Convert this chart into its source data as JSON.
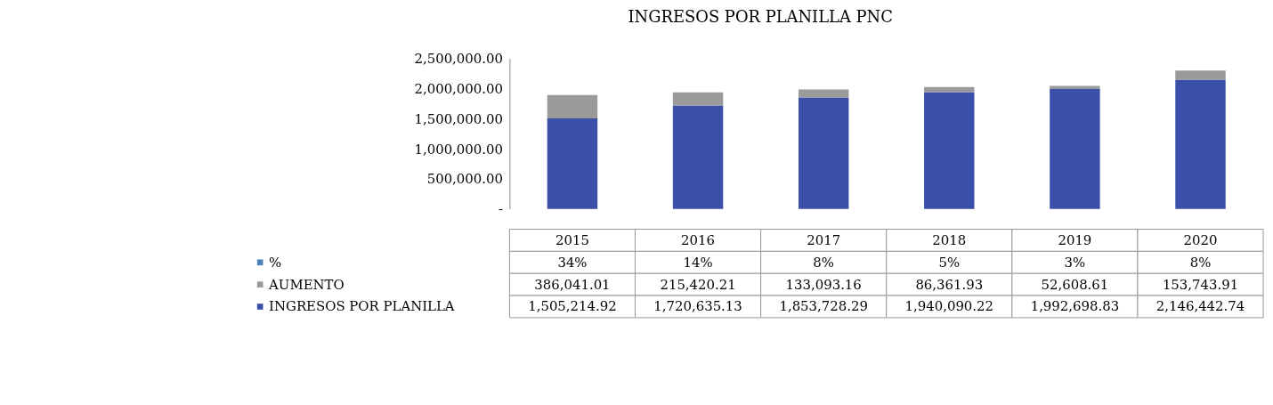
{
  "chart_data": {
    "type": "bar",
    "title": "INGRESOS POR PLANILLA PNC",
    "stacked": true,
    "legend": "bottom",
    "grid": false,
    "categories": [
      "2015",
      "2016",
      "2017",
      "2018",
      "2019",
      "2020"
    ],
    "ylim": [
      0,
      2500000
    ],
    "yticks": [
      {
        "value": 0,
        "label": "-"
      },
      {
        "value": 500000,
        "label": "500,000.00"
      },
      {
        "value": 1000000,
        "label": "1,000,000.00"
      },
      {
        "value": 1500000,
        "label": "1,500,000.00"
      },
      {
        "value": 2000000,
        "label": "2,000,000.00"
      },
      {
        "value": 2500000,
        "label": "2,500,000.00"
      }
    ],
    "series": [
      {
        "name": "INGRESOS POR PLANILLA",
        "color": "#3a4fa8",
        "values": [
          1505214.92,
          1720635.13,
          1853728.29,
          1940090.22,
          1992698.83,
          2146442.74
        ],
        "value_labels": [
          "1,505,214.92",
          "1,720,635.13",
          "1,853,728.29",
          "1,940,090.22",
          "1,992,698.83",
          "2,146,442.74"
        ]
      },
      {
        "name": "AUMENTO",
        "color": "#9a9a9a",
        "values": [
          386041.01,
          215420.21,
          133093.16,
          86361.93,
          52608.61,
          153743.91
        ],
        "value_labels": [
          "386,041.01",
          "215,420.21",
          "133,093.16",
          "86,361.93",
          "52,608.61",
          "153,743.91"
        ]
      },
      {
        "name": "%",
        "color": "#4f81bd",
        "values": [
          34,
          14,
          8,
          5,
          3,
          8
        ],
        "value_labels": [
          "34%",
          "14%",
          "8%",
          "5%",
          "3%",
          "8%"
        ]
      }
    ]
  }
}
